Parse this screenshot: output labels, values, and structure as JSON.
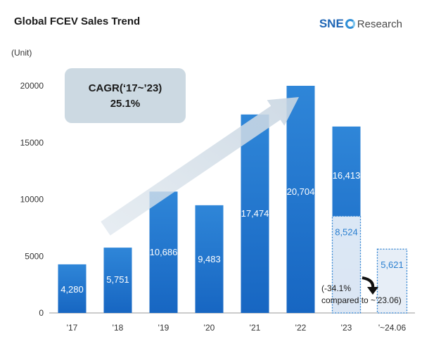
{
  "header": {
    "title": "Global FCEV Sales Trend",
    "unit": "(Unit)",
    "logo_brand": "SNE",
    "logo_suffix": "Research"
  },
  "chart_data": {
    "type": "bar",
    "categories": [
      "'17",
      "'18",
      "'19",
      "'20",
      "'21",
      "'22",
      "'23",
      "'~24.06"
    ],
    "y_ticks": [
      "0",
      "5000",
      "10000",
      "15000",
      "20000"
    ],
    "ylim": [
      0,
      20000
    ],
    "series": [
      {
        "values": [
          4280,
          5751,
          10686,
          9483,
          17474,
          20704,
          16413,
          null
        ],
        "labels": [
          "4,280",
          "5,751",
          "10,686",
          "9,483",
          "17,474",
          "20,704",
          "16,413",
          ""
        ],
        "color": "#1f78d1"
      },
      {
        "values": [
          null,
          null,
          null,
          null,
          null,
          null,
          8524,
          5621
        ],
        "labels": [
          "",
          "",
          "",
          "",
          "",
          "",
          "8,524",
          "5,621"
        ],
        "color": "#2a7fd0"
      }
    ],
    "annotations": {
      "cagr_line1": "CAGR(‘17~’23)",
      "cagr_line2": "25.1%",
      "change_line1": "(-34.1%",
      "change_line2": "compared to ~’23.06)"
    }
  }
}
